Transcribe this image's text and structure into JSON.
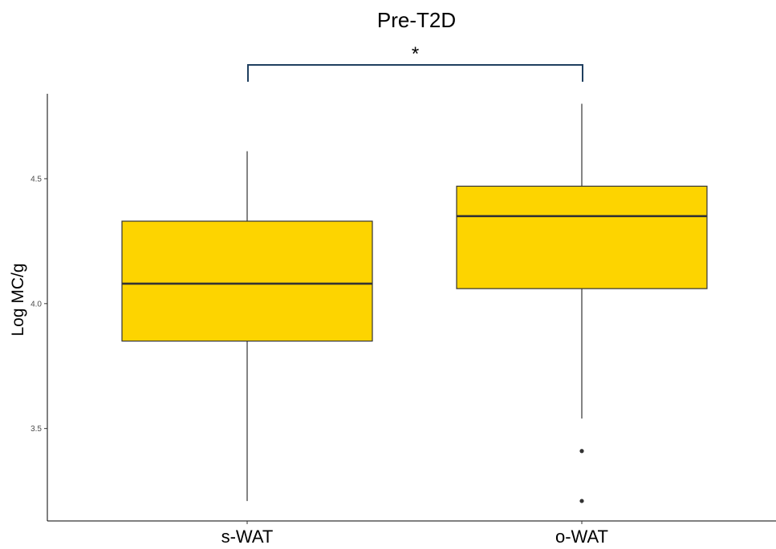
{
  "chart_data": {
    "type": "box",
    "title": "Pre-T2D",
    "xlabel": "",
    "ylabel": "Log MC/g",
    "categories": [
      "s-WAT",
      "o-WAT"
    ],
    "ylim": [
      3.13,
      4.84
    ],
    "yticks": [
      3.5,
      4.0,
      4.5
    ],
    "ytick_labels": [
      "3.5",
      "4.0",
      "4.5"
    ],
    "grid": false,
    "legend": "none",
    "box_color": "#FDD400",
    "line_color": "#333333",
    "significance_color": "#1F3F5F",
    "boxes": [
      {
        "category": "s-WAT",
        "whisker_low": 3.21,
        "q1": 3.85,
        "median": 4.08,
        "q3": 4.33,
        "whisker_high": 4.61,
        "outliers": []
      },
      {
        "category": "o-WAT",
        "whisker_low": 3.54,
        "q1": 4.06,
        "median": 4.35,
        "q3": 4.47,
        "whisker_high": 4.8,
        "outliers": [
          3.41,
          3.21
        ]
      }
    ],
    "significance": {
      "from": "s-WAT",
      "to": "o-WAT",
      "label": "*"
    }
  }
}
